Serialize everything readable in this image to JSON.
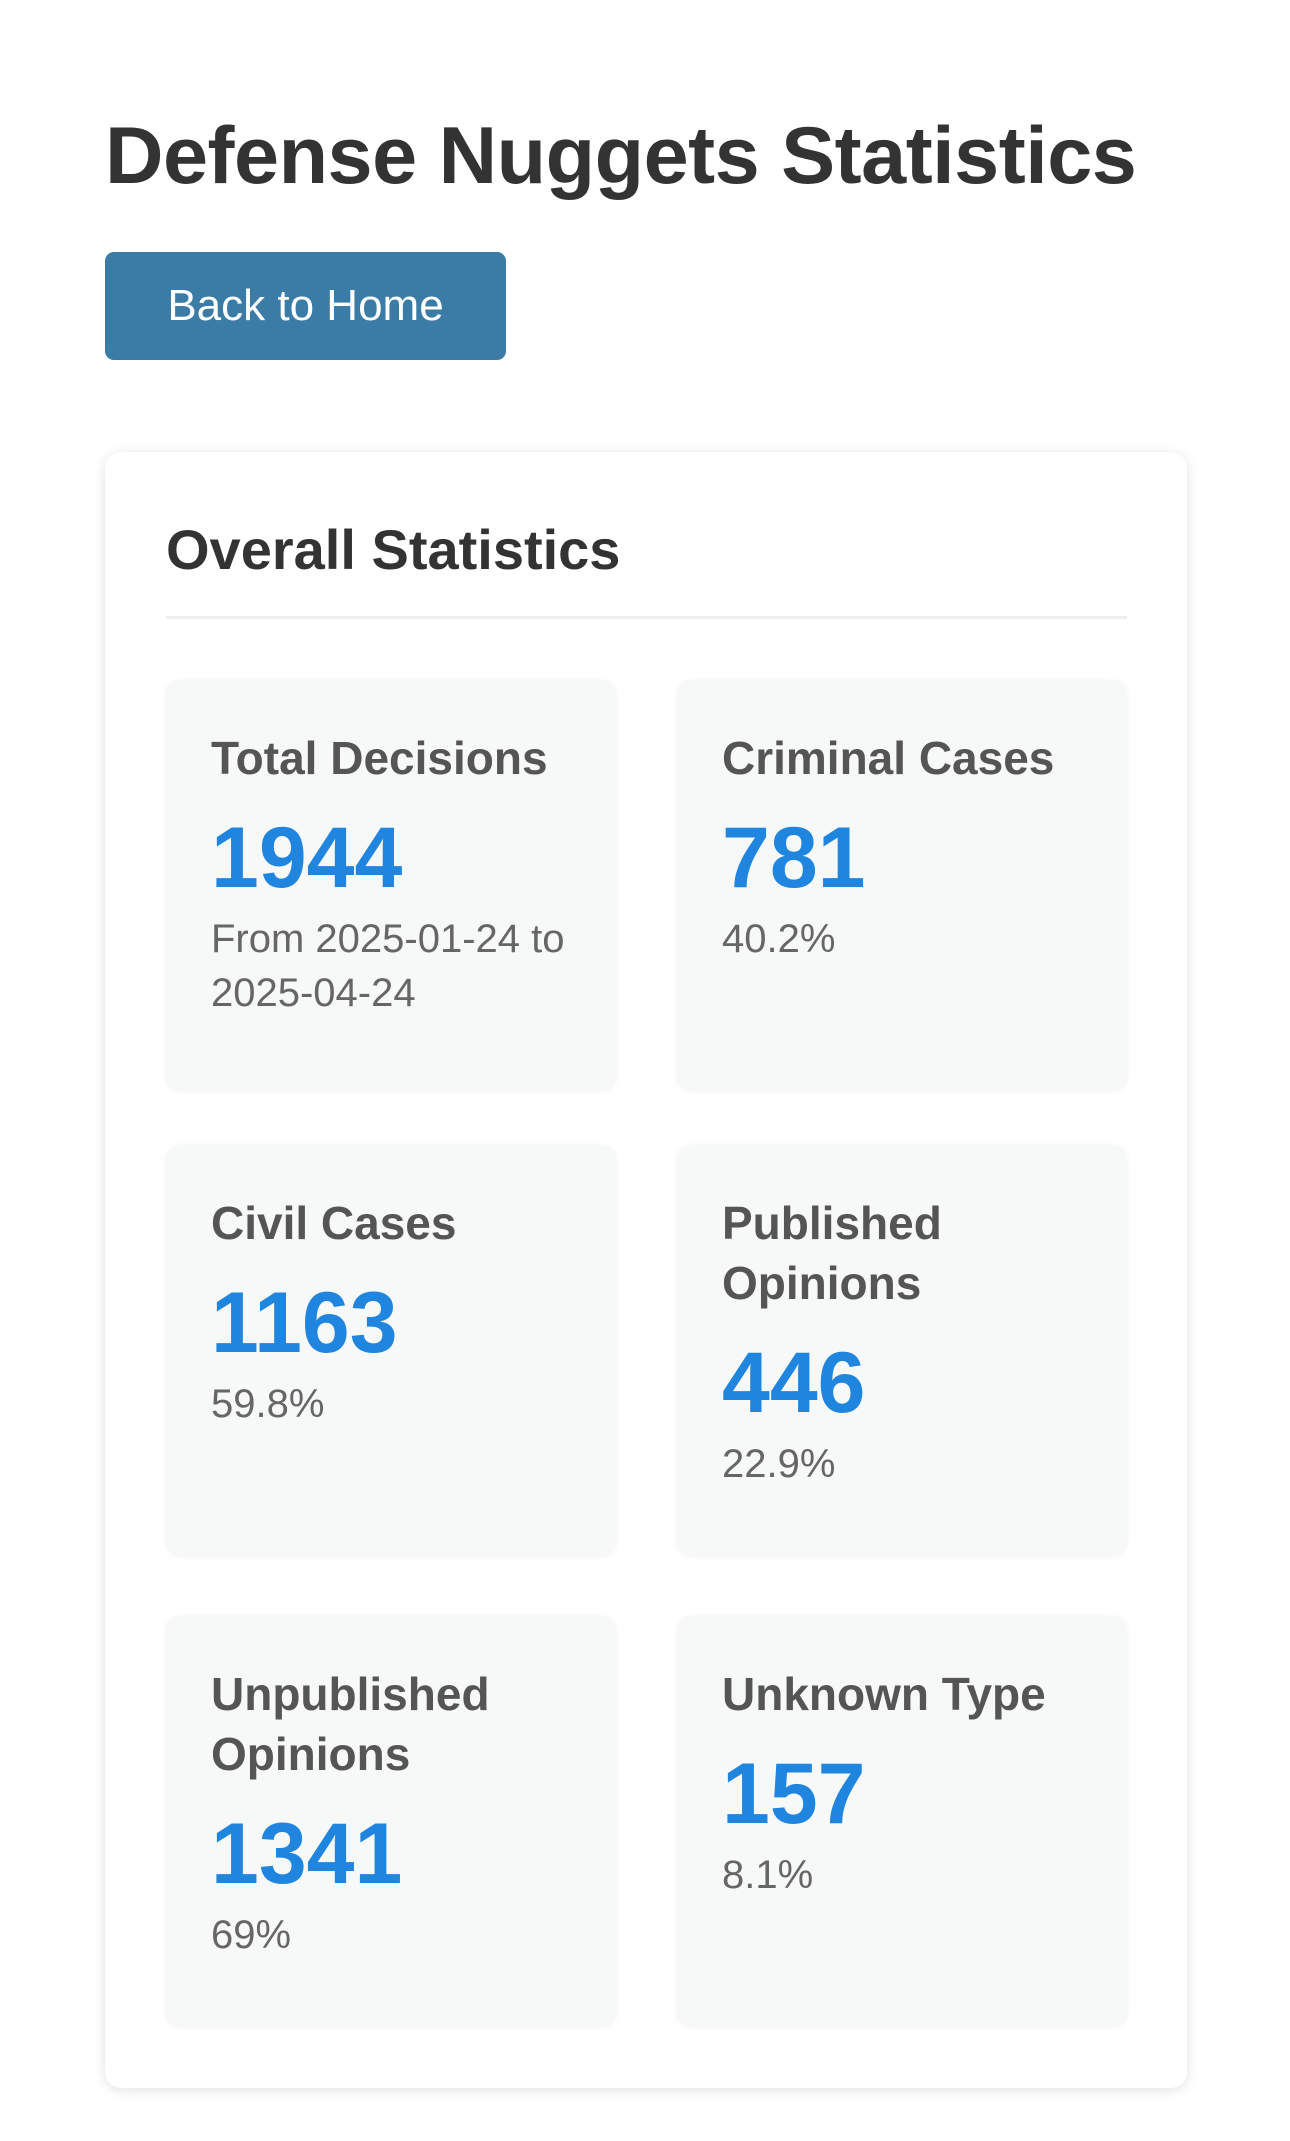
{
  "header": {
    "title": "Defense Nuggets Statistics",
    "back_label": "Back to Home"
  },
  "overall": {
    "title": "Overall Statistics",
    "stats": [
      {
        "label": "Total Decisions",
        "value": "1944",
        "sub": "From 2025-01-24 to 2025-04-24"
      },
      {
        "label": "Criminal Cases",
        "value": "781",
        "sub": "40.2%"
      },
      {
        "label": "Civil Cases",
        "value": "1163",
        "sub": "59.8%"
      },
      {
        "label": "Published Opinions",
        "value": "446",
        "sub": "22.9%"
      },
      {
        "label": "Unpublished Opinions",
        "value": "1341",
        "sub": "69%"
      },
      {
        "label": "Unknown Type",
        "value": "157",
        "sub": "8.1%"
      }
    ]
  },
  "colors": {
    "accent": "#1f85de",
    "button": "#3b7ca6",
    "card_bg": "#f7f8f8"
  }
}
